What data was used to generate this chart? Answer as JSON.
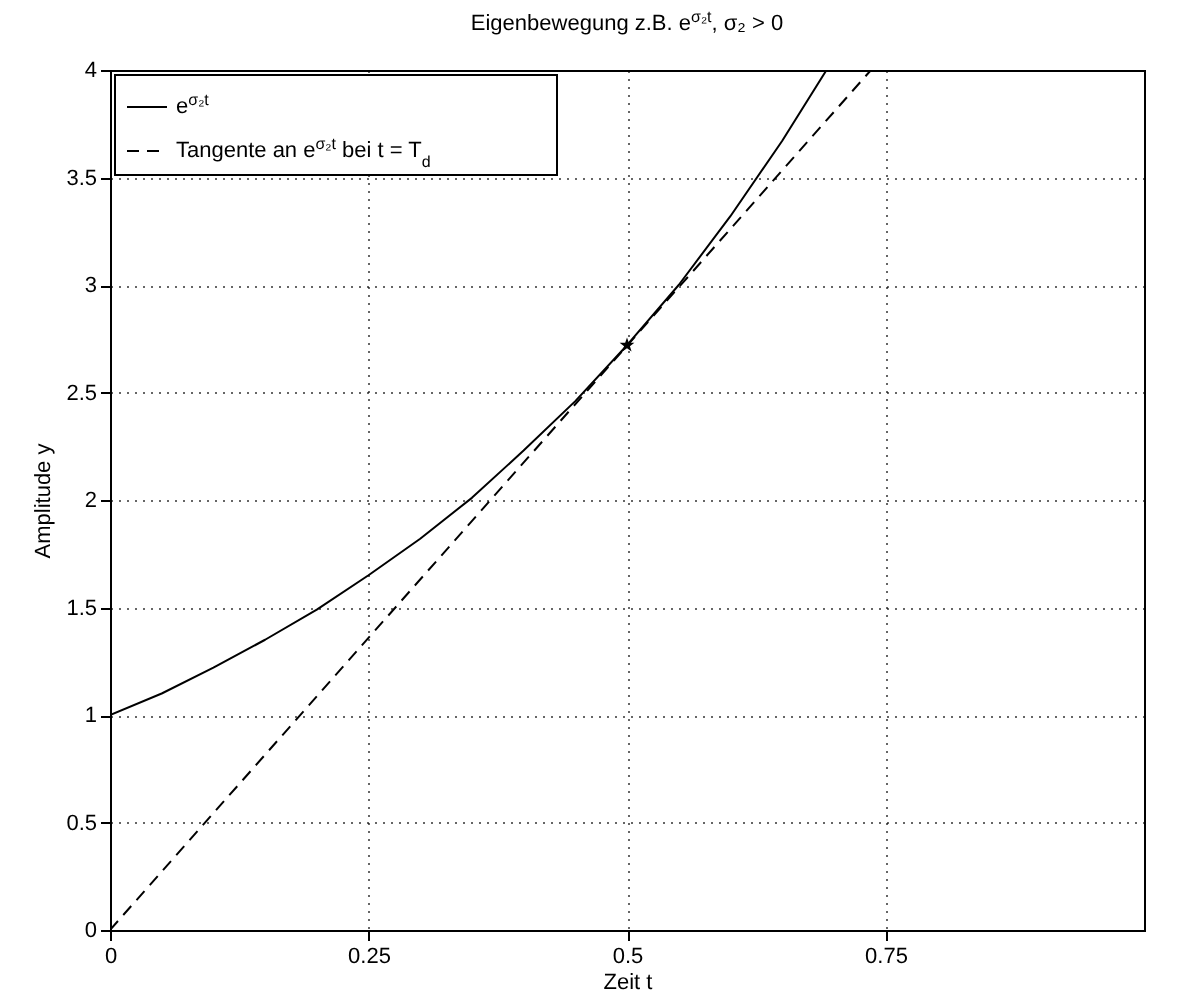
{
  "chart_data": {
    "type": "line",
    "title": "Eigenbewegung z.B. e$^{σ₂t}$, σ₂ > 0",
    "xlabel": "Zeit t",
    "ylabel": "Amplitude y",
    "xlim": [
      0,
      1
    ],
    "xticks": [
      0,
      0.25,
      0.5,
      0.75
    ],
    "ylim": [
      0,
      4
    ],
    "yticks": [
      0,
      0.5,
      1,
      1.5,
      2,
      2.5,
      3,
      3.5,
      4
    ],
    "grid": true,
    "legend": "top left",
    "series": [
      {
        "name": "e$^{σ₂t}$",
        "color": "#000000",
        "type": "line",
        "line_style": "solid",
        "x": [
          0,
          0.05,
          0.1,
          0.15,
          0.2,
          0.25,
          0.3,
          0.35,
          0.4,
          0.45,
          0.5,
          0.55,
          0.6,
          0.65,
          0.693
        ],
        "values": [
          1,
          1.1,
          1.22,
          1.35,
          1.49,
          1.65,
          1.82,
          2.01,
          2.23,
          2.46,
          2.72,
          3,
          3.32,
          3.67,
          4
        ]
      },
      {
        "name": "Tangente an e$^{σ₂t}$ bei t = T$_{d}$",
        "color": "#000000",
        "type": "line",
        "line_style": "dashed",
        "x": [
          0,
          0.736
        ],
        "values": [
          0,
          4
        ]
      },
      {
        "color": "#000000",
        "type": "scatter",
        "marker": "star",
        "x": [
          0.5
        ],
        "values": [
          2.72
        ]
      }
    ]
  }
}
